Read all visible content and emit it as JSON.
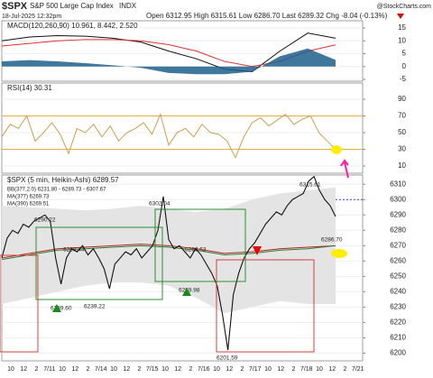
{
  "header": {
    "symbol": "$SPX",
    "name": "S&P 500 Large Cap Index",
    "exchange": "INDX",
    "date": "18-Jul-2025 12:32pm",
    "quote": "Open 6312.95 High 6315.61 Low 6286.70 Last 6289.32 Chg -8.04 (-0.13%)",
    "source": "@StockCharts.com"
  },
  "chart_data": [
    {
      "type": "macd",
      "title": "MACD(120,260,90) 10.961, 8.442, 2.520",
      "ylim": [
        -5.7,
        17.8
      ],
      "yticks": [
        15,
        10,
        5,
        0,
        -5
      ],
      "series": [
        {
          "color": "#111111",
          "values": [
            10,
            11.5,
            12,
            11.8,
            11,
            9.5,
            6,
            3,
            -1,
            -2,
            6,
            13,
            11
          ]
        },
        {
          "color": "#e03030",
          "values": [
            8,
            9,
            10,
            10.5,
            10.5,
            10,
            8.5,
            6,
            2,
            0,
            2,
            6,
            8.4
          ]
        },
        {
          "color": "#1f5f8b",
          "kind": "area",
          "values": [
            2,
            2.5,
            2,
            1.3,
            0.5,
            -0.5,
            -2.5,
            -3,
            -3,
            -2,
            4,
            7,
            2.6
          ]
        }
      ]
    },
    {
      "type": "rsi",
      "title": "RSI(14) 30.31",
      "ylim": [
        1.4,
        109.5
      ],
      "yticks": [
        90,
        70,
        50,
        30,
        10
      ],
      "bands": [
        70,
        30
      ],
      "series": [
        {
          "color": "#c8a050",
          "values": [
            45,
            60,
            55,
            70,
            40,
            50,
            62,
            48,
            25,
            55,
            50,
            60,
            45,
            58,
            40,
            50,
            55,
            62,
            48,
            72,
            35,
            50,
            55,
            45,
            60,
            50,
            48,
            40,
            20,
            45,
            62,
            68,
            58,
            65,
            72,
            60,
            66,
            70,
            50,
            40,
            30
          ]
        }
      ]
    },
    {
      "type": "price",
      "title": "$SPX (5 min, Heikin-Ashi) 6289.57",
      "legend": [
        "BB(377,2.0) 6231.80 - 6289.73 - 6307.67",
        "MA(377) 6269.73",
        "MA(390) 6269.51"
      ],
      "ylim": [
        6195,
        6316
      ],
      "yticks": [
        6310,
        6300,
        6290,
        6280,
        6270,
        6260,
        6250,
        6240,
        6230,
        6220,
        6210,
        6200
      ],
      "reference_line": 6300,
      "x_labels": [
        "10",
        "12",
        "2",
        "7/11",
        "10",
        "12",
        "2",
        "7/14",
        "10",
        "12",
        "2",
        "7/15",
        "10",
        "12",
        "2",
        "7/16",
        "10",
        "12",
        "2",
        "7/17",
        "10",
        "12",
        "2",
        "7/18",
        "10",
        "12",
        "2",
        "7/21"
      ],
      "band": {
        "color": "#e4e4e4",
        "upper": [
          6296,
          6295,
          6294,
          6293,
          6294,
          6296,
          6294,
          6292,
          6294,
          6300,
          6304,
          6306,
          6308
        ],
        "lower": [
          6232,
          6236,
          6240,
          6244,
          6246,
          6246,
          6244,
          6236,
          6226,
          6230,
          6234,
          6232,
          6232
        ]
      },
      "series": [
        {
          "color": "#b22222",
          "values": [
            6262,
            6265,
            6268,
            6269,
            6270,
            6271,
            6270,
            6268,
            6265,
            6266,
            6268,
            6269,
            6270
          ]
        },
        {
          "color": "#2e7d32",
          "values": [
            6261,
            6264,
            6267,
            6268,
            6269,
            6270,
            6269,
            6267,
            6264,
            6265,
            6267,
            6268,
            6270
          ]
        },
        {
          "color": "#111111",
          "values": [
            6262,
            6275,
            6280,
            6278,
            6284,
            6282,
            6286,
            6288,
            6290,
            6286,
            6262,
            6245,
            6262,
            6268,
            6266,
            6270,
            6264,
            6268,
            6262,
            6255,
            6242,
            6258,
            6262,
            6266,
            6264,
            6268,
            6262,
            6266,
            6270,
            6280,
            6302,
            6274,
            6268,
            6270,
            6266,
            6262,
            6268,
            6264,
            6258,
            6252,
            6244,
            6225,
            6202,
            6238,
            6252,
            6262,
            6268,
            6272,
            6278,
            6284,
            6288,
            6292,
            6290,
            6296,
            6300,
            6302,
            6304,
            6312,
            6315,
            6306,
            6300,
            6296,
            6289
          ]
        }
      ],
      "annotations": [
        "6290.22",
        "6269.44",
        "6302.04",
        "6269.63",
        "6315.61",
        "6286.70",
        "6239.60",
        "6239.22",
        "6269.98",
        "6201.59"
      ]
    }
  ]
}
